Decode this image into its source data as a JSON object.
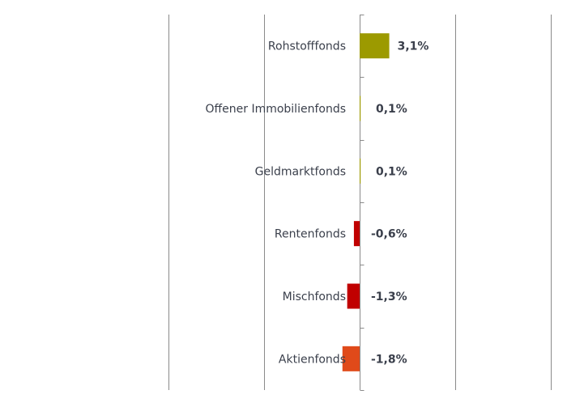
{
  "chart_data": {
    "type": "bar",
    "orientation": "horizontal",
    "categories": [
      "Rohstofffonds",
      "Offener Immobilienfonds",
      "Geldmarktfonds",
      "Rentenfonds",
      "Mischfonds",
      "Aktienfonds"
    ],
    "values": [
      3.1,
      0.1,
      0.1,
      -0.6,
      -1.3,
      -1.8
    ],
    "value_labels": [
      "3,1%",
      "0,1%",
      "0,1%",
      "-0,6%",
      "-1,3%",
      "-1,8%"
    ],
    "colors": [
      "#9c9a00",
      "#9c9a00",
      "#9c9a00",
      "#c00000",
      "#c00000",
      "#e04a1a"
    ],
    "xlim": [
      -20,
      20
    ],
    "gridlines_x": [
      -20,
      -10,
      10,
      20
    ],
    "grid": true,
    "legend": "none",
    "title": "",
    "xlabel": "",
    "ylabel": ""
  }
}
